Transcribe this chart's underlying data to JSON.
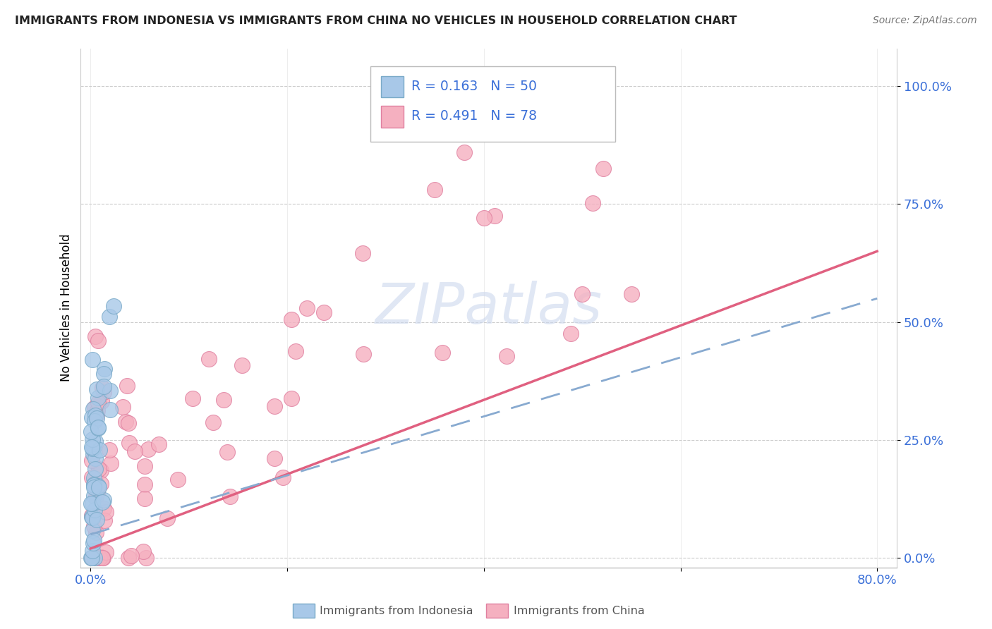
{
  "title": "IMMIGRANTS FROM INDONESIA VS IMMIGRANTS FROM CHINA NO VEHICLES IN HOUSEHOLD CORRELATION CHART",
  "source": "Source: ZipAtlas.com",
  "ylabel": "No Vehicles in Household",
  "yticks": [
    "0.0%",
    "25.0%",
    "50.0%",
    "75.0%",
    "100.0%"
  ],
  "ytick_vals": [
    0.0,
    0.25,
    0.5,
    0.75,
    1.0
  ],
  "xlim": [
    0.0,
    0.8
  ],
  "ylim": [
    0.0,
    1.05
  ],
  "watermark": "ZIPatlas",
  "legend_r1": "R = 0.163",
  "legend_n1": "N = 50",
  "legend_r2": "R = 0.491",
  "legend_n2": "N = 78",
  "color_indonesia": "#a8c8e8",
  "color_china": "#f5b0c0",
  "color_text_blue": "#3a6fd8",
  "color_trendline_indonesia": "#88aad0",
  "color_trendline_china": "#e06080",
  "trendline_china_intercept": 0.0,
  "trendline_china_slope": 0.83,
  "trendline_indo_intercept": 0.05,
  "trendline_indo_slope": 0.6
}
